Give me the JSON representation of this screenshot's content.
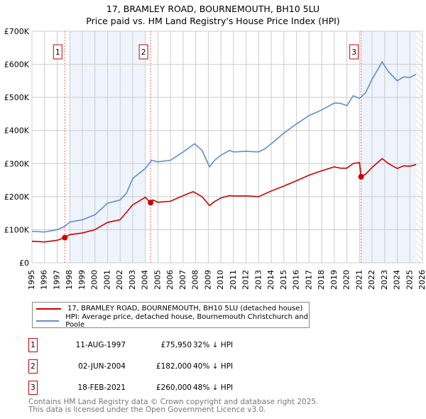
{
  "chart_data": {
    "type": "line",
    "title": "17, BRAMLEY ROAD, BOURNEMOUTH, BH10 5LU",
    "subtitle": "Price paid vs. HM Land Registry's House Price Index (HPI)",
    "xlim": [
      1995,
      2026
    ],
    "ylim": [
      0,
      700000
    ],
    "x_ticks": [
      "1995",
      "1996",
      "1997",
      "1998",
      "1999",
      "2000",
      "2001",
      "2002",
      "2003",
      "2004",
      "2005",
      "2006",
      "2007",
      "2008",
      "2009",
      "2010",
      "2011",
      "2012",
      "2013",
      "2014",
      "2015",
      "2016",
      "2017",
      "2018",
      "2019",
      "2020",
      "2021",
      "2022",
      "2023",
      "2024",
      "2025",
      "2026"
    ],
    "y_ticks": [
      {
        "v": 0,
        "label": "£0"
      },
      {
        "v": 100000,
        "label": "£100K"
      },
      {
        "v": 200000,
        "label": "£200K"
      },
      {
        "v": 300000,
        "label": "£300K"
      },
      {
        "v": 400000,
        "label": "£400K"
      },
      {
        "v": 500000,
        "label": "£500K"
      },
      {
        "v": 600000,
        "label": "£600K"
      },
      {
        "v": 700000,
        "label": "£700K"
      }
    ],
    "grid": true,
    "series": [
      {
        "name": "17, BRAMLEY ROAD, BOURNEMOUTH, BH10 5LU (detached house)",
        "color": "#cc0000",
        "x": [
          1995,
          1996,
          1997,
          1997.6,
          1998,
          1999,
          2000,
          2001,
          2002,
          2003,
          2004,
          2004.4,
          2004.6,
          2005,
          2006,
          2007,
          2007.8,
          2008.5,
          2009.1,
          2009.5,
          2010,
          2010.7,
          2011,
          2012,
          2013,
          2014,
          2015,
          2016,
          2017,
          2018,
          2019,
          2019.5,
          2020,
          2020.5,
          2021.0,
          2021.13,
          2021.5,
          2022,
          2022.8,
          2023.3,
          2024,
          2024.5,
          2025,
          2025.5
        ],
        "y": [
          65000,
          63000,
          68000,
          76000,
          85000,
          90000,
          100000,
          122000,
          130000,
          175000,
          198000,
          182000,
          190000,
          183000,
          186000,
          203000,
          215000,
          200000,
          173000,
          185000,
          196000,
          203000,
          202000,
          202000,
          200000,
          217000,
          232000,
          248000,
          265000,
          278000,
          290000,
          286000,
          286000,
          300000,
          303000,
          260000,
          268000,
          288000,
          315000,
          300000,
          285000,
          293000,
          292000,
          297000
        ]
      },
      {
        "name": "HPI: Average price, detached house, Bournemouth Christchurch and Poole",
        "color": "#5b8fd0",
        "x": [
          1995,
          1996,
          1997,
          1997.6,
          1998,
          1999,
          2000,
          2001,
          2002,
          2002.5,
          2003,
          2004,
          2004.5,
          2005,
          2006,
          2007,
          2007.9,
          2008.5,
          2009.1,
          2009.5,
          2010,
          2010.7,
          2011,
          2012,
          2013,
          2013.5,
          2014,
          2015,
          2016,
          2017,
          2018,
          2019,
          2019.5,
          2020,
          2020.5,
          2021,
          2021.5,
          2022,
          2022.8,
          2023.3,
          2024,
          2024.5,
          2025,
          2025.5
        ],
        "y": [
          95000,
          93000,
          100000,
          110000,
          123000,
          130000,
          145000,
          180000,
          190000,
          210000,
          255000,
          285000,
          310000,
          305000,
          310000,
          335000,
          360000,
          340000,
          290000,
          310000,
          325000,
          340000,
          335000,
          337000,
          335000,
          345000,
          360000,
          392000,
          420000,
          445000,
          462000,
          483000,
          482000,
          475000,
          505000,
          497000,
          515000,
          555000,
          607000,
          578000,
          550000,
          562000,
          560000,
          570000
        ]
      }
    ],
    "sales": [
      {
        "n": "1",
        "x": 1997.61,
        "y": 75950
      },
      {
        "n": "2",
        "x": 2004.42,
        "y": 182000
      },
      {
        "n": "3",
        "x": 2021.13,
        "y": 260000
      }
    ],
    "shaded": [
      [
        1998,
        2004
      ],
      [
        2021.13,
        2025.5
      ]
    ],
    "hatch_from": 2025.5
  },
  "legend": [
    "17, BRAMLEY ROAD, BOURNEMOUTH, BH10 5LU (detached house)",
    "HPI: Average price, detached house, Bournemouth Christchurch and Poole"
  ],
  "transactions": [
    {
      "n": "1",
      "date": "11-AUG-1997",
      "price": "£75,950",
      "hpi": "32% ↓ HPI"
    },
    {
      "n": "2",
      "date": "02-JUN-2004",
      "price": "£182,000",
      "hpi": "40% ↓ HPI"
    },
    {
      "n": "3",
      "date": "18-FEB-2021",
      "price": "£260,000",
      "hpi": "48% ↓ HPI"
    }
  ],
  "footer": [
    "Contains HM Land Registry data © Crown copyright and database right 2025.",
    "This data is licensed under the Open Government Licence v3.0."
  ]
}
